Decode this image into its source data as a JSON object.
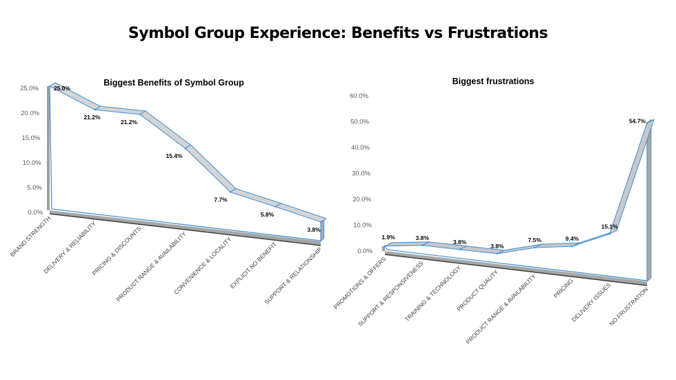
{
  "title": "Symbol Group Experience: Benefits vs Frustrations",
  "chart_data": [
    {
      "type": "line",
      "style": "3d-ribbon",
      "title": "Biggest Benefits of Symbol Group",
      "categories": [
        "BRAND STRENGTH",
        "DELIVERY & RELIABILITY",
        "PRICING & DISCOUNTS",
        "PRODUCT RANGE & AVAILABILITY",
        "CONVENIENCE & LOCALITY",
        "EXPLICIT NO BENEFIT",
        "SUPPORT & RELATIONSHIP"
      ],
      "values": [
        25.0,
        21.2,
        21.2,
        15.4,
        7.7,
        5.8,
        3.8
      ],
      "data_labels": [
        "25.0%",
        "21.2%",
        "21.2%",
        "15.4%",
        "7.7%",
        "5.8%",
        "3.8%"
      ],
      "yticks": [
        "0.0%",
        "5.0%",
        "10.0%",
        "15.0%",
        "20.0%",
        "25.0%"
      ],
      "ylim": [
        0,
        25
      ],
      "xlabel": "",
      "ylabel": "",
      "colors": {
        "ribbon": "#d4d4d4",
        "edge": "#3b8ed8",
        "floor": "#a6a6a6"
      }
    },
    {
      "type": "line",
      "style": "3d-ribbon",
      "title": "Biggest frustrations",
      "categories": [
        "PROMOTIONS & OFFERS",
        "SUPPORT & RESPONSIVENESS",
        "TRAINING & TECHNOLOGY",
        "PRODUCT QUALITY",
        "PRODUCT RANGE & AVAILABILITY",
        "PRICING",
        "DELIVERY ISSUES",
        "NO FRUSTRATION"
      ],
      "values": [
        1.9,
        3.8,
        3.8,
        3.8,
        7.5,
        9.4,
        15.1,
        54.7
      ],
      "data_labels": [
        "1.9%",
        "3.8%",
        "3.8%",
        "3.8%",
        "7.5%",
        "9.4%",
        "15.1%",
        "54.7%"
      ],
      "yticks": [
        "0.0%",
        "10.0%",
        "20.0%",
        "30.0%",
        "40.0%",
        "50.0%",
        "60.0%"
      ],
      "ylim": [
        0,
        60
      ],
      "xlabel": "",
      "ylabel": "",
      "colors": {
        "ribbon": "#c8c8c8",
        "edge": "#3b8ed8",
        "floor": "#a6a6a6"
      }
    }
  ]
}
